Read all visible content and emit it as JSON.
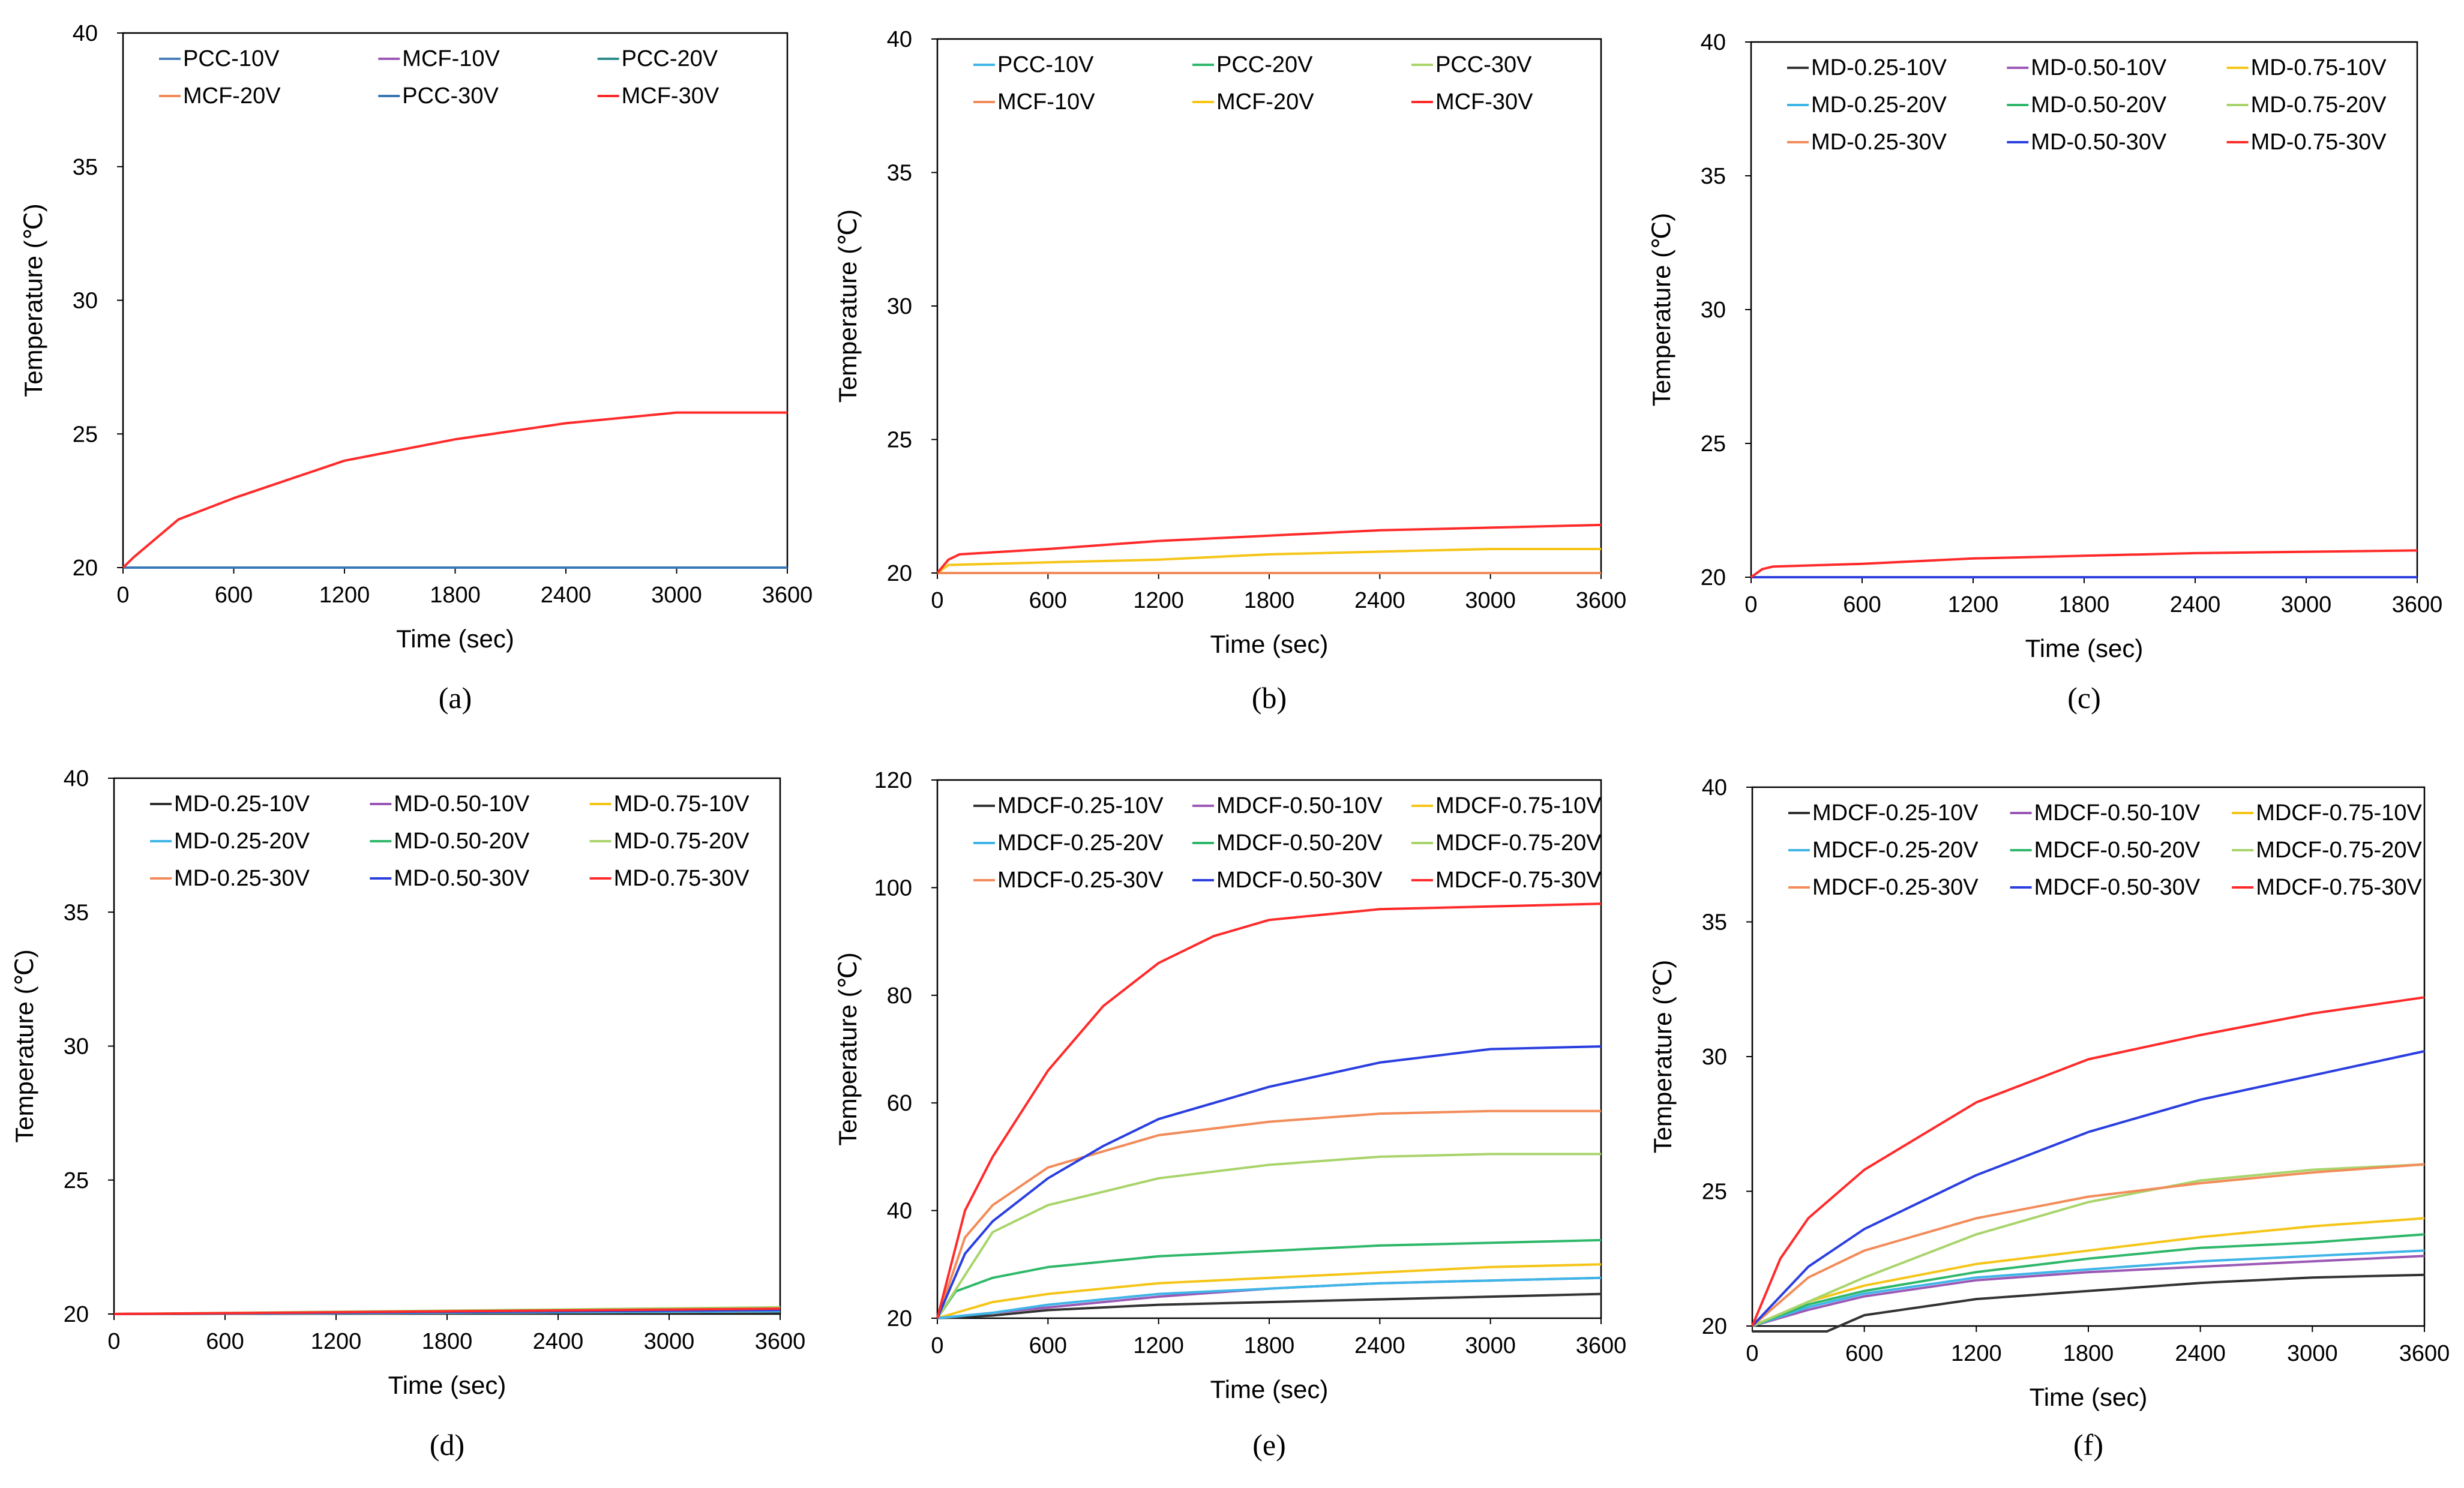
{
  "chart_data": [
    {
      "type": "line",
      "panel_label": "(a)",
      "xlabel": "Time (sec)",
      "ylabel": "Temperature (℃)",
      "xlim": [
        0,
        3600
      ],
      "ylim": [
        20,
        40
      ],
      "xticks": [
        "0",
        "600",
        "1200",
        "1800",
        "2400",
        "3000",
        "3600"
      ],
      "yticks": [
        "20",
        "25",
        "30",
        "35",
        "40"
      ],
      "legend_columns": 3,
      "legend_placement": "top",
      "series": [
        {
          "name": "PCC-10V",
          "color": "#4a7ebb",
          "x": [
            0,
            3600
          ],
          "y": [
            20,
            20
          ]
        },
        {
          "name": "MCF-10V",
          "color": "#9b59b6",
          "x": [
            0,
            3600
          ],
          "y": [
            20,
            20
          ]
        },
        {
          "name": "PCC-20V",
          "color": "#2e8b8b",
          "x": [
            0,
            3600
          ],
          "y": [
            20,
            20
          ]
        },
        {
          "name": "MCF-20V",
          "color": "#f28c5a",
          "x": [
            0,
            3600
          ],
          "y": [
            20,
            20
          ]
        },
        {
          "name": "PCC-30V",
          "color": "#3a78b5",
          "x": [
            0,
            3600
          ],
          "y": [
            20,
            20
          ]
        },
        {
          "name": "MCF-30V",
          "color": "#ff2b2b",
          "x": [
            0,
            60,
            300,
            600,
            1200,
            1800,
            2400,
            3000,
            3600
          ],
          "y": [
            20,
            20.4,
            21.8,
            22.6,
            24.0,
            24.8,
            25.4,
            25.8,
            25.8
          ]
        }
      ]
    },
    {
      "type": "line",
      "panel_label": "(b)",
      "xlabel": "Time (sec)",
      "ylabel": "Temperature (℃)",
      "xlim": [
        0,
        3600
      ],
      "ylim": [
        20,
        40
      ],
      "xticks": [
        "0",
        "600",
        "1200",
        "1800",
        "2400",
        "3000",
        "3600"
      ],
      "yticks": [
        "20",
        "25",
        "30",
        "35",
        "40"
      ],
      "legend_columns": 3,
      "legend_placement": "top",
      "series": [
        {
          "name": "PCC-10V",
          "color": "#3fb5e8",
          "x": [
            0,
            3600
          ],
          "y": [
            20,
            20
          ]
        },
        {
          "name": "PCC-20V",
          "color": "#2fb86a",
          "x": [
            0,
            3600
          ],
          "y": [
            20,
            20
          ]
        },
        {
          "name": "PCC-30V",
          "color": "#a9d46b",
          "x": [
            0,
            3600
          ],
          "y": [
            20,
            20
          ]
        },
        {
          "name": "MCF-10V",
          "color": "#f28c5a",
          "x": [
            0,
            3600
          ],
          "y": [
            20,
            20
          ]
        },
        {
          "name": "MCF-20V",
          "color": "#f5c518",
          "x": [
            0,
            60,
            600,
            1200,
            1800,
            2400,
            3000,
            3600
          ],
          "y": [
            20,
            20.3,
            20.4,
            20.5,
            20.7,
            20.8,
            20.9,
            20.9
          ]
        },
        {
          "name": "MCF-30V",
          "color": "#ff2b2b",
          "x": [
            0,
            60,
            120,
            600,
            1200,
            1800,
            2400,
            3000,
            3600
          ],
          "y": [
            20,
            20.5,
            20.7,
            20.9,
            21.2,
            21.4,
            21.6,
            21.7,
            21.8
          ]
        }
      ]
    },
    {
      "type": "line",
      "panel_label": "(c)",
      "xlabel": "Time (sec)",
      "ylabel": "Temperature (℃)",
      "xlim": [
        0,
        3600
      ],
      "ylim": [
        20,
        40
      ],
      "xticks": [
        "0",
        "600",
        "1200",
        "1800",
        "2400",
        "3000",
        "3600"
      ],
      "yticks": [
        "20",
        "25",
        "30",
        "35",
        "40"
      ],
      "legend_columns": 3,
      "legend_placement": "top",
      "series": [
        {
          "name": "MD-0.25-10V",
          "color": "#333333",
          "x": [
            0,
            3600
          ],
          "y": [
            20,
            20
          ]
        },
        {
          "name": "MD-0.50-10V",
          "color": "#9b59b6",
          "x": [
            0,
            3600
          ],
          "y": [
            20,
            20
          ]
        },
        {
          "name": "MD-0.75-10V",
          "color": "#f5c518",
          "x": [
            0,
            3600
          ],
          "y": [
            20,
            20
          ]
        },
        {
          "name": "MD-0.25-20V",
          "color": "#3fb5e8",
          "x": [
            0,
            3600
          ],
          "y": [
            20,
            20
          ]
        },
        {
          "name": "MD-0.50-20V",
          "color": "#2fb86a",
          "x": [
            0,
            3600
          ],
          "y": [
            20,
            20
          ]
        },
        {
          "name": "MD-0.75-20V",
          "color": "#a9d46b",
          "x": [
            0,
            3600
          ],
          "y": [
            20,
            20
          ]
        },
        {
          "name": "MD-0.25-30V",
          "color": "#f28c5a",
          "x": [
            0,
            3600
          ],
          "y": [
            20,
            20
          ]
        },
        {
          "name": "MD-0.50-30V",
          "color": "#2b3fe0",
          "x": [
            0,
            3600
          ],
          "y": [
            20,
            20
          ]
        },
        {
          "name": "MD-0.75-30V",
          "color": "#ff2b2b",
          "x": [
            0,
            60,
            120,
            600,
            1200,
            1800,
            2400,
            3000,
            3600
          ],
          "y": [
            20,
            20.3,
            20.4,
            20.5,
            20.7,
            20.8,
            20.9,
            20.95,
            21.0
          ]
        }
      ]
    },
    {
      "type": "line",
      "panel_label": "(d)",
      "xlabel": "Time (sec)",
      "ylabel": "Temperature (℃)",
      "xlim": [
        0,
        3600
      ],
      "ylim": [
        20,
        40
      ],
      "xticks": [
        "0",
        "600",
        "1200",
        "1800",
        "2400",
        "3000",
        "3600"
      ],
      "yticks": [
        "20",
        "25",
        "30",
        "35",
        "40"
      ],
      "legend_columns": 3,
      "legend_placement": "top",
      "series": [
        {
          "name": "MD-0.25-10V",
          "color": "#333333",
          "x": [
            0,
            3600
          ],
          "y": [
            20,
            20.05
          ]
        },
        {
          "name": "MD-0.50-10V",
          "color": "#9b59b6",
          "x": [
            0,
            3600
          ],
          "y": [
            20,
            20.1
          ]
        },
        {
          "name": "MD-0.75-10V",
          "color": "#f5c518",
          "x": [
            0,
            3600
          ],
          "y": [
            20,
            20.1
          ]
        },
        {
          "name": "MD-0.25-20V",
          "color": "#3fb5e8",
          "x": [
            0,
            3600
          ],
          "y": [
            20,
            20.1
          ]
        },
        {
          "name": "MD-0.50-20V",
          "color": "#2fb86a",
          "x": [
            0,
            3600
          ],
          "y": [
            20,
            20.15
          ]
        },
        {
          "name": "MD-0.75-20V",
          "color": "#a9d46b",
          "x": [
            0,
            3600
          ],
          "y": [
            20,
            20.25
          ]
        },
        {
          "name": "MD-0.25-30V",
          "color": "#f28c5a",
          "x": [
            0,
            3600
          ],
          "y": [
            20,
            20.15
          ]
        },
        {
          "name": "MD-0.50-30V",
          "color": "#2b3fe0",
          "x": [
            0,
            3600
          ],
          "y": [
            20,
            20.15
          ]
        },
        {
          "name": "MD-0.75-30V",
          "color": "#ff2b2b",
          "x": [
            0,
            3600
          ],
          "y": [
            20,
            20.2
          ]
        }
      ]
    },
    {
      "type": "line",
      "panel_label": "(e)",
      "xlabel": "Time (sec)",
      "ylabel": "Temperature (℃)",
      "xlim": [
        0,
        3600
      ],
      "ylim": [
        20,
        120
      ],
      "xticks": [
        "0",
        "600",
        "1200",
        "1800",
        "2400",
        "3000",
        "3600"
      ],
      "yticks": [
        "20",
        "40",
        "60",
        "80",
        "100",
        "120"
      ],
      "legend_columns": 3,
      "legend_placement": "top",
      "series": [
        {
          "name": "MDCF-0.25-10V",
          "color": "#333333",
          "x": [
            0,
            300,
            600,
            1200,
            1800,
            2400,
            3000,
            3600
          ],
          "y": [
            20,
            20.5,
            21.5,
            22.5,
            23,
            23.5,
            24,
            24.5
          ]
        },
        {
          "name": "MDCF-0.50-10V",
          "color": "#9b59b6",
          "x": [
            0,
            300,
            600,
            1200,
            1800,
            2400,
            3000,
            3600
          ],
          "y": [
            20,
            21,
            22,
            24,
            25.5,
            26.5,
            27,
            27.5
          ]
        },
        {
          "name": "MDCF-0.75-10V",
          "color": "#f5c518",
          "x": [
            0,
            300,
            600,
            1200,
            1800,
            2400,
            3000,
            3600
          ],
          "y": [
            20,
            23,
            24.5,
            26.5,
            27.5,
            28.5,
            29.5,
            30
          ]
        },
        {
          "name": "MDCF-0.25-20V",
          "color": "#3fb5e8",
          "x": [
            0,
            300,
            600,
            1200,
            1800,
            2400,
            3000,
            3600
          ],
          "y": [
            20,
            21,
            22.5,
            24.5,
            25.5,
            26.5,
            27,
            27.5
          ]
        },
        {
          "name": "MDCF-0.50-20V",
          "color": "#2fb86a",
          "x": [
            0,
            100,
            300,
            600,
            1200,
            1800,
            2400,
            3000,
            3600
          ],
          "y": [
            20,
            25,
            27.5,
            29.5,
            31.5,
            32.5,
            33.5,
            34,
            34.5
          ]
        },
        {
          "name": "MDCF-0.75-20V",
          "color": "#a9d46b",
          "x": [
            0,
            300,
            600,
            1200,
            1800,
            2400,
            3000,
            3600
          ],
          "y": [
            20,
            36,
            41,
            46,
            48.5,
            50,
            50.5,
            50.5
          ]
        },
        {
          "name": "MDCF-0.25-30V",
          "color": "#f28c5a",
          "x": [
            0,
            150,
            300,
            600,
            900,
            1200,
            1800,
            2400,
            3000,
            3600
          ],
          "y": [
            20,
            35,
            41,
            48,
            51,
            54,
            56.5,
            58,
            58.5,
            58.5
          ]
        },
        {
          "name": "MDCF-0.50-30V",
          "color": "#2b3fe0",
          "x": [
            0,
            150,
            300,
            600,
            900,
            1200,
            1800,
            2400,
            3000,
            3600
          ],
          "y": [
            20,
            32,
            38,
            46,
            52,
            57,
            63,
            67.5,
            70,
            70.5
          ]
        },
        {
          "name": "MDCF-0.75-30V",
          "color": "#ff2b2b",
          "x": [
            0,
            150,
            300,
            450,
            600,
            900,
            1200,
            1500,
            1800,
            2400,
            3000,
            3600
          ],
          "y": [
            20,
            40,
            50,
            58,
            66,
            78,
            86,
            91,
            94,
            96,
            96.5,
            97
          ]
        }
      ]
    },
    {
      "type": "line",
      "panel_label": "(f)",
      "xlabel": "Time (sec)",
      "ylabel": "Temperature (℃)",
      "xlim": [
        0,
        3600
      ],
      "ylim": [
        20,
        40
      ],
      "xticks": [
        "0",
        "600",
        "1200",
        "1800",
        "2400",
        "3000",
        "3600"
      ],
      "yticks": [
        "20",
        "25",
        "30",
        "35",
        "40"
      ],
      "legend_columns": 3,
      "legend_placement": "top",
      "series": [
        {
          "name": "MDCF-0.25-10V",
          "color": "#333333",
          "x": [
            0,
            400,
            600,
            1200,
            1800,
            2400,
            3000,
            3600
          ],
          "y": [
            19.8,
            19.8,
            20.4,
            21.0,
            21.3,
            21.6,
            21.8,
            21.9
          ]
        },
        {
          "name": "MDCF-0.50-10V",
          "color": "#9b59b6",
          "x": [
            0,
            300,
            600,
            1200,
            1800,
            2400,
            3000,
            3600
          ],
          "y": [
            20,
            20.6,
            21.1,
            21.7,
            22.0,
            22.2,
            22.4,
            22.6
          ]
        },
        {
          "name": "MDCF-0.75-10V",
          "color": "#f5c518",
          "x": [
            0,
            300,
            600,
            1200,
            1800,
            2400,
            3000,
            3600
          ],
          "y": [
            20,
            20.9,
            21.5,
            22.3,
            22.8,
            23.3,
            23.7,
            24.0
          ]
        },
        {
          "name": "MDCF-0.25-20V",
          "color": "#3fb5e8",
          "x": [
            0,
            300,
            600,
            1200,
            1800,
            2400,
            3000,
            3600
          ],
          "y": [
            20,
            20.7,
            21.2,
            21.8,
            22.1,
            22.4,
            22.6,
            22.8
          ]
        },
        {
          "name": "MDCF-0.50-20V",
          "color": "#2fb86a",
          "x": [
            0,
            300,
            600,
            1200,
            1800,
            2400,
            3000,
            3600
          ],
          "y": [
            20,
            20.8,
            21.3,
            22.0,
            22.5,
            22.9,
            23.1,
            23.4
          ]
        },
        {
          "name": "MDCF-0.75-20V",
          "color": "#a9d46b",
          "x": [
            0,
            300,
            600,
            1200,
            1800,
            2400,
            3000,
            3600
          ],
          "y": [
            20,
            20.9,
            21.8,
            23.4,
            24.6,
            25.4,
            25.8,
            26.0
          ]
        },
        {
          "name": "MDCF-0.25-30V",
          "color": "#f28c5a",
          "x": [
            0,
            300,
            600,
            1200,
            1800,
            2400,
            3000,
            3600
          ],
          "y": [
            20,
            21.8,
            22.8,
            24.0,
            24.8,
            25.3,
            25.7,
            26.0
          ]
        },
        {
          "name": "MDCF-0.50-30V",
          "color": "#2b3fe0",
          "x": [
            0,
            300,
            600,
            1200,
            1800,
            2400,
            3000,
            3600
          ],
          "y": [
            20,
            22.2,
            23.6,
            25.6,
            27.2,
            28.4,
            29.3,
            30.2
          ]
        },
        {
          "name": "MDCF-0.75-30V",
          "color": "#ff2b2b",
          "x": [
            0,
            150,
            300,
            600,
            1200,
            1800,
            2400,
            3000,
            3600
          ],
          "y": [
            20,
            22.5,
            24.0,
            25.8,
            28.3,
            29.9,
            30.8,
            31.6,
            32.2
          ]
        }
      ]
    }
  ]
}
